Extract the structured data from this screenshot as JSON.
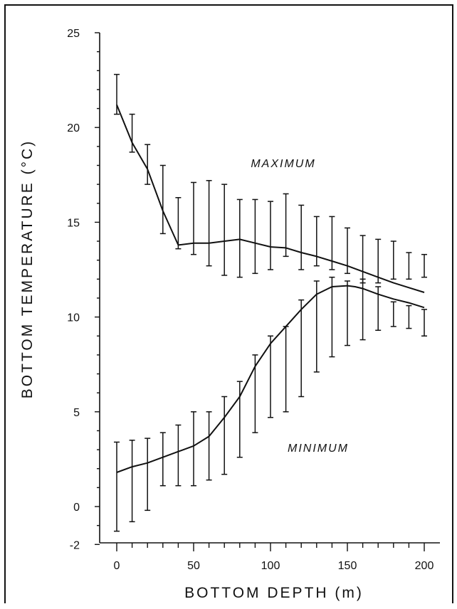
{
  "chart_data": {
    "type": "line",
    "xlabel": "BOTTOM DEPTH (m)",
    "ylabel": "BOTTOM TEMPERATURE (°C)",
    "xlim": [
      0,
      200
    ],
    "ylim": [
      -2,
      25
    ],
    "x_ticks": [
      0,
      50,
      100,
      150,
      200
    ],
    "y_ticks": [
      25,
      20,
      15,
      10,
      5,
      0,
      -2
    ],
    "grid": false,
    "legend": "none",
    "x": [
      0,
      10,
      20,
      30,
      40,
      50,
      60,
      70,
      80,
      90,
      100,
      110,
      120,
      130,
      140,
      150,
      160,
      170,
      180,
      190,
      200
    ],
    "series": [
      {
        "name": "MAXIMUM",
        "x": [
          0,
          10,
          20,
          30,
          40,
          50,
          60,
          70,
          80,
          90,
          100,
          110,
          120,
          130,
          140,
          150,
          160,
          170,
          180,
          190,
          200
        ],
        "values": [
          21.2,
          19.2,
          17.8,
          15.6,
          13.8,
          13.9,
          13.9,
          14.0,
          14.1,
          13.9,
          13.7,
          13.65,
          13.4,
          13.2,
          12.95,
          12.7,
          12.4,
          12.1,
          11.8,
          11.55,
          11.3
        ],
        "error_low": [
          20.7,
          18.7,
          17.0,
          14.4,
          13.6,
          13.3,
          12.7,
          12.2,
          12.1,
          12.3,
          12.5,
          13.2,
          12.5,
          12.7,
          12.5,
          12.3,
          11.8,
          11.8,
          12.0,
          12.0,
          12.1
        ],
        "error_high": [
          22.8,
          20.7,
          19.1,
          18.0,
          16.3,
          17.1,
          17.2,
          17.0,
          16.2,
          16.2,
          16.1,
          16.5,
          15.9,
          15.3,
          15.3,
          14.7,
          14.3,
          14.1,
          14.0,
          13.4,
          13.3
        ]
      },
      {
        "name": "MINIMUM",
        "x": [
          0,
          10,
          20,
          30,
          40,
          50,
          60,
          70,
          80,
          90,
          100,
          110,
          120,
          130,
          140,
          150,
          155,
          160,
          170,
          180,
          190,
          200
        ],
        "values": [
          1.8,
          2.1,
          2.3,
          2.6,
          2.9,
          3.2,
          3.7,
          4.7,
          5.8,
          7.4,
          8.6,
          9.5,
          10.4,
          11.2,
          11.6,
          11.65,
          11.6,
          11.5,
          11.2,
          10.95,
          10.75,
          10.5
        ],
        "error_x": [
          0,
          10,
          20,
          30,
          40,
          50,
          60,
          70,
          80,
          90,
          100,
          110,
          120,
          130,
          140,
          150,
          160,
          170,
          180,
          190,
          200
        ],
        "error_low": [
          -1.3,
          -0.8,
          -0.2,
          1.1,
          1.1,
          1.1,
          1.4,
          1.7,
          2.6,
          3.9,
          4.7,
          5.0,
          5.8,
          7.1,
          7.9,
          8.5,
          8.8,
          9.3,
          9.5,
          9.4,
          9.0
        ],
        "error_high": [
          3.4,
          3.5,
          3.6,
          3.9,
          4.3,
          5.0,
          5.0,
          5.8,
          6.6,
          8.0,
          9.0,
          9.5,
          10.9,
          11.9,
          12.1,
          11.9,
          12.0,
          11.6,
          10.8,
          10.6,
          10.4
        ]
      }
    ],
    "annotations": [
      "MAXIMUM",
      "MINIMUM"
    ],
    "line_color": "#111111",
    "background": "#ffffff"
  }
}
